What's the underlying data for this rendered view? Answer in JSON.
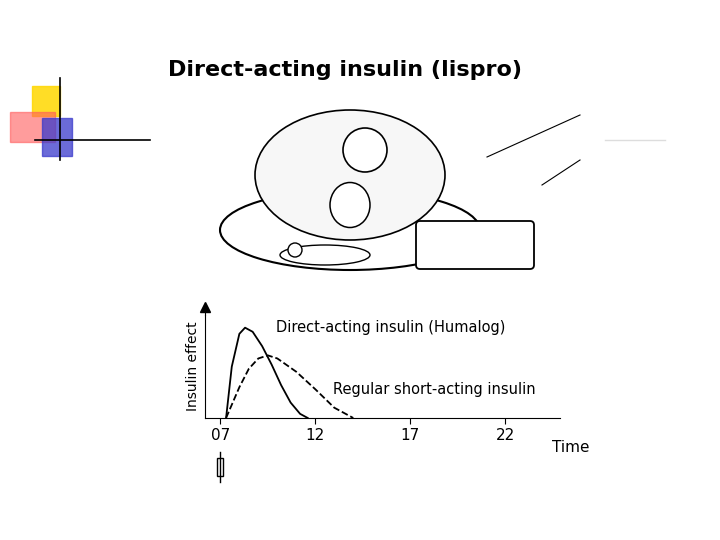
{
  "chart_data": {
    "type": "line",
    "title": "Direct-acting insulin (lispro)",
    "x_label": "Time",
    "y_label": "Insulin effect",
    "xlim": [
      6.2,
      24.9
    ],
    "xticks": [
      {
        "value": 7,
        "label": "07"
      },
      {
        "value": 12,
        "label": "12"
      },
      {
        "value": 17,
        "label": "17"
      },
      {
        "value": 22,
        "label": "22"
      }
    ],
    "ylim": [
      0,
      100
    ],
    "tick_labels": "x",
    "series": [
      {
        "name": "Direct-acting insulin (Humalog)",
        "color": "#000000",
        "line_style": "solid",
        "x": [
          7.3,
          7.6,
          8.0,
          8.3,
          8.7,
          9.2,
          9.7,
          10.2,
          10.7,
          11.2,
          11.6
        ],
        "values": [
          0,
          50,
          82,
          88,
          84,
          70,
          52,
          32,
          15,
          4,
          0
        ]
      },
      {
        "name": "Regular short-acting insulin",
        "color": "#000000",
        "line_style": "dashed",
        "x": [
          7.3,
          8.0,
          8.5,
          9.0,
          9.5,
          10.0,
          11.0,
          12.0,
          13.0,
          14.0
        ],
        "values": [
          0,
          30,
          48,
          58,
          61,
          58,
          45,
          28,
          10,
          0
        ]
      }
    ]
  }
}
